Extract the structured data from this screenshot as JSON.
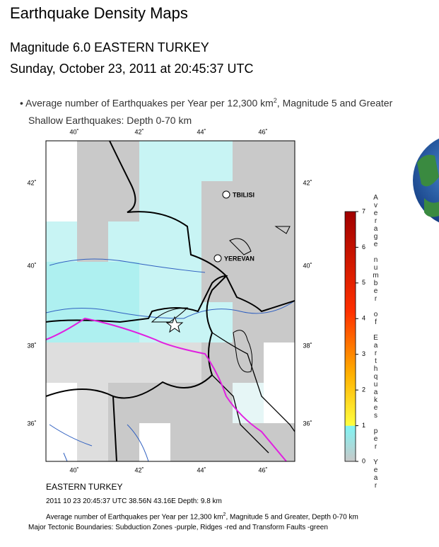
{
  "header": {
    "title": "Earthquake Density Maps",
    "event": "Magnitude 6.0 EASTERN TURKEY",
    "date": "Sunday, October 23, 2011 at 20:45:37 UTC"
  },
  "legend": {
    "text": "Average number of Earthquakes per Year per 12,300 km",
    "sup": "2",
    "text_end": ", Magnitude 5 and Greater",
    "subtitle": "Shallow Earthquakes: Depth 0-70 km"
  },
  "map": {
    "lon_ticks": [
      "40˚",
      "42˚",
      "44˚",
      "46˚"
    ],
    "lat_ticks": [
      "42˚",
      "40˚",
      "38˚",
      "36˚"
    ],
    "cities": [
      "TBILISI",
      "YEREVAN"
    ],
    "colorbar": {
      "ticks": [
        0,
        1,
        2,
        3,
        4,
        5,
        6,
        7
      ],
      "label": "Average number of Earthquakes per Year"
    }
  },
  "caption": {
    "region": "EASTERN TURKEY",
    "event_line": "2011 10 23 20:45:37 UTC 38.56N 43.16E Depth: 9.8 km",
    "density": "Average number of Earthquakes per Year per 12,300 km",
    "density_sup": "2",
    "density_end": ", Magnitude 5 and Greater, Depth 0-70 km",
    "tectonic": "Major Tectonic Boundaries: Subduction Zones -purple, Ridges -red and Transform Faults -green"
  }
}
